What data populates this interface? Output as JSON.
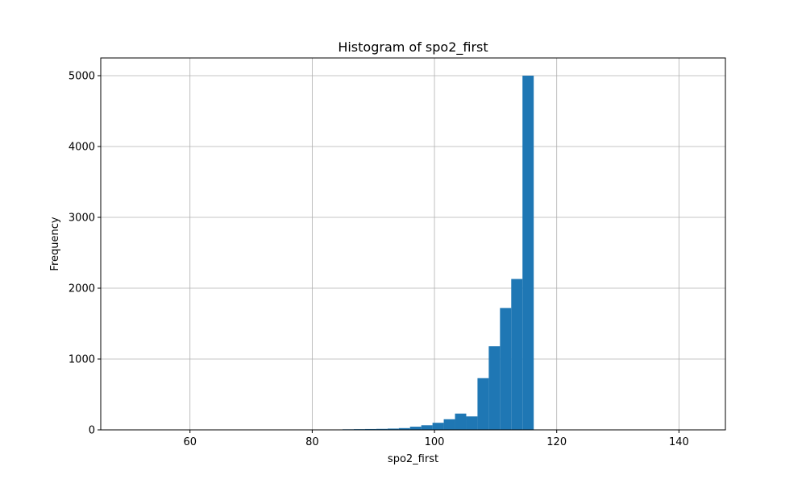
{
  "chart_data": {
    "type": "bar",
    "title": "Histogram of spo2_first",
    "xlabel": "spo2_first",
    "ylabel": "Frequency",
    "xlim": [
      45.4,
      147.6
    ],
    "ylim": [
      0,
      5250
    ],
    "x_ticks": [
      60,
      80,
      100,
      120,
      140
    ],
    "y_ticks": [
      0,
      1000,
      2000,
      3000,
      4000,
      5000
    ],
    "grid": true,
    "bar_color": "#1f77b4",
    "bin_width": 1.84,
    "bin_start": 50.0,
    "values": [
      1,
      0,
      1,
      0,
      0,
      0,
      0,
      0,
      0,
      0,
      1,
      2,
      0,
      2,
      1,
      2,
      3,
      4,
      5,
      8,
      10,
      12,
      14,
      18,
      25,
      45,
      65,
      100,
      150,
      230,
      190,
      730,
      1180,
      1720,
      2130,
      5000,
      0,
      0,
      0,
      0,
      0,
      0,
      0,
      0,
      0,
      0,
      0,
      0,
      0,
      1
    ]
  }
}
